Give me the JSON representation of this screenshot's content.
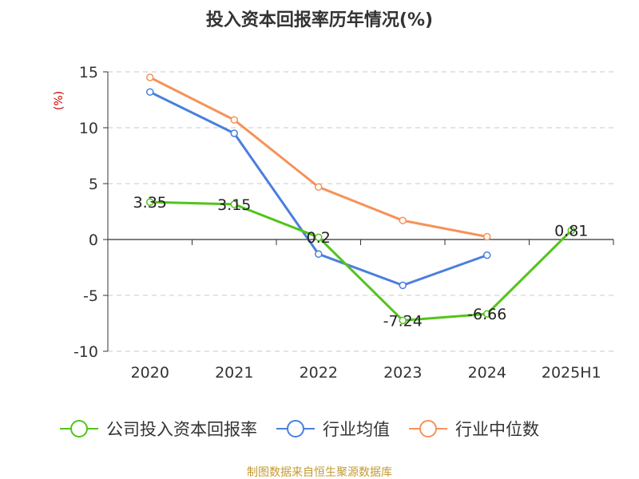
{
  "chart_data": {
    "type": "line",
    "title": "投入资本回报率历年情况(%)",
    "ylabel": "(%)",
    "categories": [
      "2020",
      "2021",
      "2022",
      "2023",
      "2024",
      "2025H1"
    ],
    "ylim": [
      -10,
      15
    ],
    "yticks": [
      15,
      10,
      5,
      0,
      -5,
      -10
    ],
    "grid": true,
    "legend_position": "bottom",
    "series": [
      {
        "name": "公司投入资本回报率",
        "color": "#52c41a",
        "values": [
          3.35,
          3.15,
          0.2,
          -7.24,
          -6.66,
          0.81
        ],
        "labels": [
          "3.35",
          "3.15",
          "0.2",
          "-7.24",
          "-6.66",
          "0.81"
        ]
      },
      {
        "name": "行业均值",
        "color": "#4a7fdc",
        "values": [
          13.2,
          9.5,
          -1.3,
          -4.1,
          -1.4,
          null
        ]
      },
      {
        "name": "行业中位数",
        "color": "#f5925a",
        "values": [
          14.5,
          10.7,
          4.7,
          1.7,
          0.25,
          null
        ]
      }
    ],
    "source": "制图数据来自恒生聚源数据库"
  }
}
